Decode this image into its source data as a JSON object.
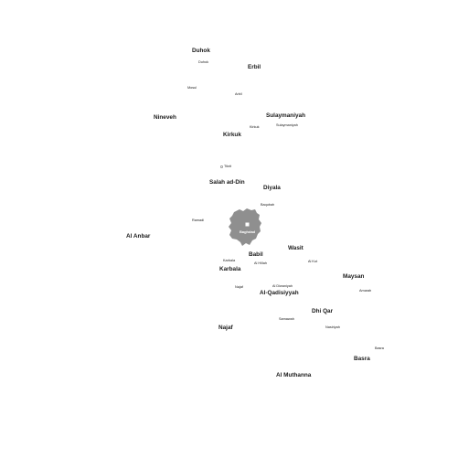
{
  "map": {
    "colors": {
      "background": "#ffffff",
      "text": "#1a1a1a",
      "highlight_region": "#8f8f8f",
      "capital_marker": "#ffffff"
    },
    "highlighted_region": "Baghdad",
    "capital": "Baghdad",
    "provinces": [
      {
        "id": "duhok",
        "label": "Duhok"
      },
      {
        "id": "erbil",
        "label": "Erbil"
      },
      {
        "id": "nineveh",
        "label": "Nineveh"
      },
      {
        "id": "sulaymaniyah",
        "label": "Sulaymaniyah"
      },
      {
        "id": "kirkuk",
        "label": "Kirkuk"
      },
      {
        "id": "salah-ad-din",
        "label": "Salah ad-Din"
      },
      {
        "id": "diyala",
        "label": "Diyala"
      },
      {
        "id": "al-anbar",
        "label": "Al Anbar"
      },
      {
        "id": "babil",
        "label": "Babil"
      },
      {
        "id": "wasit",
        "label": "Wasit"
      },
      {
        "id": "karbala",
        "label": "Karbala"
      },
      {
        "id": "maysan",
        "label": "Maysan"
      },
      {
        "id": "al-qadisiyyah",
        "label": "Al-Qadisiyyah"
      },
      {
        "id": "dhi-qar",
        "label": "Dhi Qar"
      },
      {
        "id": "najaf",
        "label": "Najaf"
      },
      {
        "id": "basra",
        "label": "Basra"
      },
      {
        "id": "al-muthanna",
        "label": "Al Muthanna"
      }
    ],
    "cities": [
      {
        "id": "duhok",
        "label": "Duhok"
      },
      {
        "id": "mosul",
        "label": "Mosul"
      },
      {
        "id": "arbil",
        "label": "Arbil"
      },
      {
        "id": "kirkuk",
        "label": "Kirkuk"
      },
      {
        "id": "sulaymaniyah",
        "label": "Sulaymaniyah"
      },
      {
        "id": "tikrit",
        "label": "Tikrit"
      },
      {
        "id": "baqubah",
        "label": "Baqubah"
      },
      {
        "id": "ramadi",
        "label": "Ramadi"
      },
      {
        "id": "baghdad",
        "label": "Baghdad"
      },
      {
        "id": "karbala",
        "label": "Karbala"
      },
      {
        "id": "al-hillah",
        "label": "Al Hillah"
      },
      {
        "id": "al-kut",
        "label": "Al Kut"
      },
      {
        "id": "najaf",
        "label": "Najaf"
      },
      {
        "id": "al-diwaniyah",
        "label": "Al Diwaniyah"
      },
      {
        "id": "amarah",
        "label": "Amarah"
      },
      {
        "id": "samawah",
        "label": "Samawah"
      },
      {
        "id": "nasiriyah",
        "label": "Nasiriyah"
      },
      {
        "id": "basra",
        "label": "Basra"
      }
    ]
  }
}
